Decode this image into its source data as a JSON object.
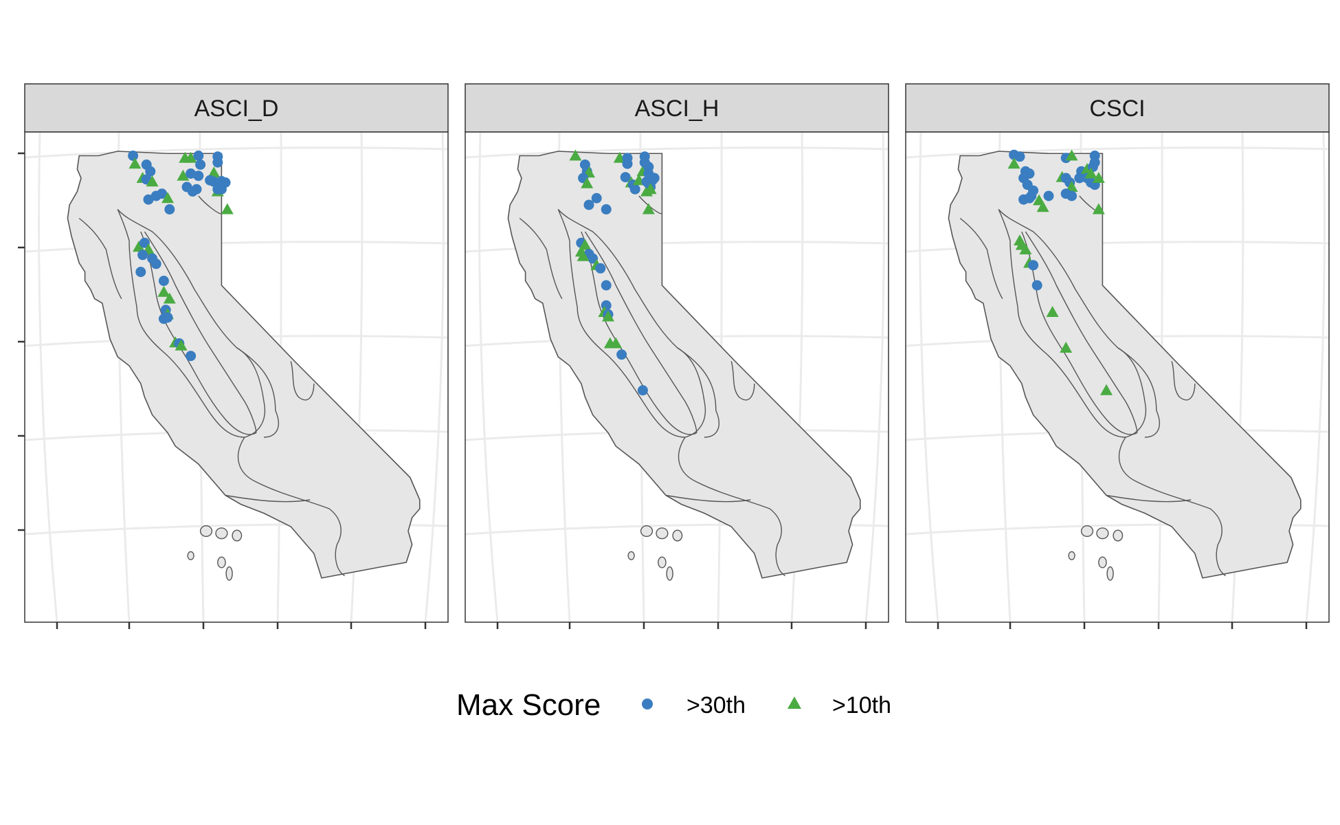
{
  "colors": {
    "blue": "#3a7dc0",
    "green": "#4aab42",
    "land": "#e6e6e6",
    "outline": "#555555",
    "grid": "#ebebeb",
    "strip": "#d9d9d9",
    "frame": "#333333"
  },
  "legend": {
    "title": "Max Score",
    "items": [
      {
        "label": ">30th",
        "shape": "circle",
        "color": "#3a7dc0"
      },
      {
        "label": ">10th",
        "shape": "triangle",
        "color": "#4aab42"
      }
    ]
  },
  "panels": [
    {
      "title": "ASCI_D",
      "points": [
        [
          0.21,
          0.01,
          "c"
        ],
        [
          0.215,
          0.028,
          "t"
        ],
        [
          0.245,
          0.03,
          "c"
        ],
        [
          0.255,
          0.045,
          "c"
        ],
        [
          0.235,
          0.06,
          "t"
        ],
        [
          0.245,
          0.063,
          "c"
        ],
        [
          0.26,
          0.068,
          "t"
        ],
        [
          0.27,
          0.1,
          "c"
        ],
        [
          0.285,
          0.095,
          "c"
        ],
        [
          0.3,
          0.105,
          "t"
        ],
        [
          0.25,
          0.108,
          "c"
        ],
        [
          0.305,
          0.13,
          "c"
        ],
        [
          0.345,
          0.015,
          "t"
        ],
        [
          0.36,
          0.015,
          "t"
        ],
        [
          0.38,
          0.01,
          "c"
        ],
        [
          0.385,
          0.03,
          "c"
        ],
        [
          0.34,
          0.055,
          "t"
        ],
        [
          0.36,
          0.05,
          "c"
        ],
        [
          0.38,
          0.055,
          "c"
        ],
        [
          0.35,
          0.08,
          "c"
        ],
        [
          0.375,
          0.085,
          "c"
        ],
        [
          0.365,
          0.09,
          "c"
        ],
        [
          0.43,
          0.012,
          "c"
        ],
        [
          0.43,
          0.025,
          "c"
        ],
        [
          0.42,
          0.048,
          "t"
        ],
        [
          0.41,
          0.065,
          "c"
        ],
        [
          0.42,
          0.068,
          "c"
        ],
        [
          0.44,
          0.067,
          "c"
        ],
        [
          0.45,
          0.07,
          "c"
        ],
        [
          0.43,
          0.09,
          "t"
        ],
        [
          0.43,
          0.085,
          "c"
        ],
        [
          0.44,
          0.085,
          "c"
        ],
        [
          0.455,
          0.13,
          "t"
        ],
        [
          0.225,
          0.214,
          "t"
        ],
        [
          0.24,
          0.205,
          "c"
        ],
        [
          0.25,
          0.22,
          "t"
        ],
        [
          0.235,
          0.232,
          "c"
        ],
        [
          0.26,
          0.24,
          "c"
        ],
        [
          0.27,
          0.252,
          "c"
        ],
        [
          0.23,
          0.27,
          "c"
        ],
        [
          0.29,
          0.29,
          "c"
        ],
        [
          0.29,
          0.315,
          "t"
        ],
        [
          0.305,
          0.33,
          "t"
        ],
        [
          0.295,
          0.355,
          "c"
        ],
        [
          0.3,
          0.365,
          "t"
        ],
        [
          0.29,
          0.375,
          "c"
        ],
        [
          0.3,
          0.372,
          "c"
        ],
        [
          0.32,
          0.428,
          "t"
        ],
        [
          0.33,
          0.43,
          "c"
        ],
        [
          0.335,
          0.435,
          "t"
        ],
        [
          0.36,
          0.458,
          "c"
        ]
      ]
    },
    {
      "title": "ASCI_H",
      "points": [
        [
          0.215,
          0.01,
          "t"
        ],
        [
          0.24,
          0.03,
          "c"
        ],
        [
          0.245,
          0.045,
          "c"
        ],
        [
          0.25,
          0.048,
          "t"
        ],
        [
          0.235,
          0.06,
          "c"
        ],
        [
          0.245,
          0.072,
          "t"
        ],
        [
          0.27,
          0.105,
          "c"
        ],
        [
          0.25,
          0.12,
          "c"
        ],
        [
          0.295,
          0.13,
          "c"
        ],
        [
          0.33,
          0.015,
          "t"
        ],
        [
          0.35,
          0.015,
          "c"
        ],
        [
          0.35,
          0.028,
          "c"
        ],
        [
          0.345,
          0.058,
          "c"
        ],
        [
          0.36,
          0.07,
          "t"
        ],
        [
          0.365,
          0.075,
          "c"
        ],
        [
          0.37,
          0.085,
          "c"
        ],
        [
          0.38,
          0.065,
          "t"
        ],
        [
          0.39,
          0.045,
          "t"
        ],
        [
          0.4,
          0.068,
          "c"
        ],
        [
          0.415,
          0.065,
          "c"
        ],
        [
          0.42,
          0.06,
          "c"
        ],
        [
          0.41,
          0.08,
          "c"
        ],
        [
          0.4,
          0.09,
          "t"
        ],
        [
          0.395,
          0.012,
          "c"
        ],
        [
          0.395,
          0.025,
          "c"
        ],
        [
          0.405,
          0.035,
          "c"
        ],
        [
          0.405,
          0.05,
          "c"
        ],
        [
          0.405,
          0.072,
          "c"
        ],
        [
          0.41,
          0.085,
          "t"
        ],
        [
          0.405,
          0.13,
          "t"
        ],
        [
          0.23,
          0.205,
          "c"
        ],
        [
          0.24,
          0.21,
          "t"
        ],
        [
          0.23,
          0.225,
          "t"
        ],
        [
          0.25,
          0.23,
          "c"
        ],
        [
          0.26,
          0.24,
          "c"
        ],
        [
          0.235,
          0.235,
          "t"
        ],
        [
          0.27,
          0.255,
          "t"
        ],
        [
          0.28,
          0.262,
          "c"
        ],
        [
          0.295,
          0.3,
          "c"
        ],
        [
          0.295,
          0.345,
          "c"
        ],
        [
          0.29,
          0.36,
          "t"
        ],
        [
          0.3,
          0.365,
          "c"
        ],
        [
          0.3,
          0.37,
          "t"
        ],
        [
          0.305,
          0.43,
          "t"
        ],
        [
          0.32,
          0.43,
          "t"
        ],
        [
          0.335,
          0.455,
          "c"
        ],
        [
          0.39,
          0.535,
          "c"
        ]
      ]
    },
    {
      "title": "CSCI",
      "points": [
        [
          0.21,
          0.008,
          "c"
        ],
        [
          0.225,
          0.012,
          "c"
        ],
        [
          0.21,
          0.028,
          "t"
        ],
        [
          0.24,
          0.045,
          "c"
        ],
        [
          0.25,
          0.05,
          "c"
        ],
        [
          0.235,
          0.06,
          "c"
        ],
        [
          0.245,
          0.075,
          "c"
        ],
        [
          0.26,
          0.088,
          "c"
        ],
        [
          0.25,
          0.105,
          "c"
        ],
        [
          0.235,
          0.108,
          "c"
        ],
        [
          0.255,
          0.1,
          "c"
        ],
        [
          0.275,
          0.11,
          "t"
        ],
        [
          0.285,
          0.125,
          "t"
        ],
        [
          0.3,
          0.1,
          "c"
        ],
        [
          0.345,
          0.015,
          "c"
        ],
        [
          0.36,
          0.01,
          "t"
        ],
        [
          0.335,
          0.058,
          "t"
        ],
        [
          0.345,
          0.06,
          "c"
        ],
        [
          0.355,
          0.07,
          "c"
        ],
        [
          0.36,
          0.08,
          "t"
        ],
        [
          0.345,
          0.095,
          "c"
        ],
        [
          0.36,
          0.1,
          "c"
        ],
        [
          0.38,
          0.06,
          "c"
        ],
        [
          0.385,
          0.045,
          "c"
        ],
        [
          0.4,
          0.04,
          "t"
        ],
        [
          0.4,
          0.06,
          "c"
        ],
        [
          0.41,
          0.07,
          "c"
        ],
        [
          0.42,
          0.075,
          "c"
        ],
        [
          0.43,
          0.06,
          "t"
        ],
        [
          0.42,
          0.01,
          "c"
        ],
        [
          0.42,
          0.025,
          "c"
        ],
        [
          0.415,
          0.035,
          "c"
        ],
        [
          0.41,
          0.05,
          "t"
        ],
        [
          0.43,
          0.13,
          "t"
        ],
        [
          0.225,
          0.2,
          "t"
        ],
        [
          0.23,
          0.21,
          "t"
        ],
        [
          0.24,
          0.22,
          "t"
        ],
        [
          0.25,
          0.25,
          "t"
        ],
        [
          0.26,
          0.255,
          "c"
        ],
        [
          0.27,
          0.3,
          "c"
        ],
        [
          0.31,
          0.36,
          "t"
        ],
        [
          0.345,
          0.44,
          "t"
        ],
        [
          0.45,
          0.535,
          "t"
        ]
      ]
    }
  ]
}
